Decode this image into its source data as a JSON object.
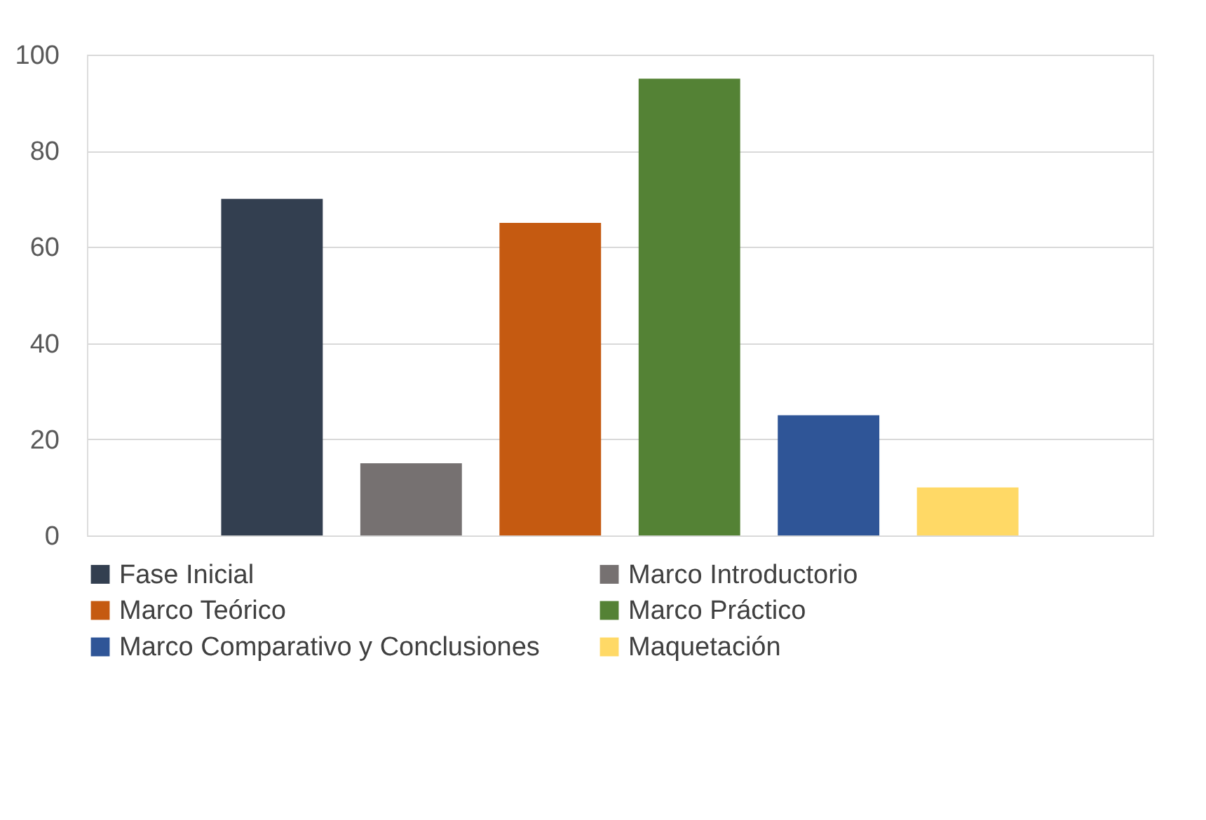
{
  "chart_data": {
    "type": "bar",
    "categories": [
      null
    ],
    "series": [
      {
        "name": "Fase Inicial",
        "color": "#333f50",
        "values": [
          70
        ]
      },
      {
        "name": "Marco Introductorio",
        "color": "#767171",
        "values": [
          15
        ]
      },
      {
        "name": "Marco Teórico",
        "color": "#c55a11",
        "values": [
          65
        ]
      },
      {
        "name": "Marco Práctico",
        "color": "#548235",
        "values": [
          95
        ]
      },
      {
        "name": "Marco Comparativo y Conclusiones",
        "color": "#2f5597",
        "values": [
          25
        ]
      },
      {
        "name": "Maquetación",
        "color": "#ffd966",
        "values": [
          10
        ]
      }
    ],
    "ylim": [
      0,
      100
    ],
    "yticks": [
      0,
      20,
      40,
      60,
      80,
      100
    ],
    "grid": "y",
    "legend": "bottom",
    "tick_labels": "y"
  }
}
